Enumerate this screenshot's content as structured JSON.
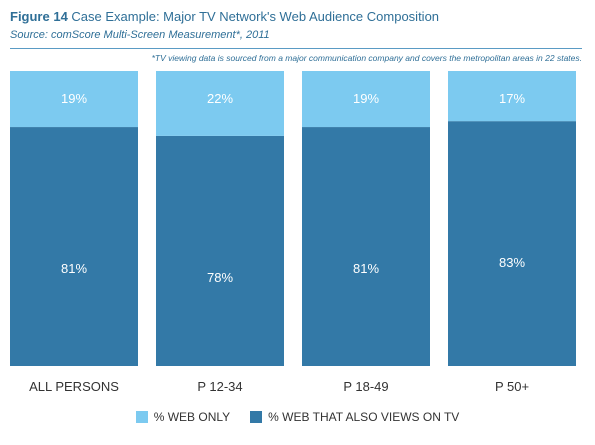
{
  "header": {
    "figure_number": "Figure 14",
    "title": "Case Example: Major TV Network's Web Audience Composition",
    "source": "Source: comScore Multi-Screen Measurement*, 2011",
    "note": "*TV viewing data is sourced from a major communication company and covers the metropolitan areas in 22 states."
  },
  "colors": {
    "web_only": "#7ccaf0",
    "web_and_tv": "#3379a7",
    "label_text": "#ffffff",
    "axis_text": "#333333"
  },
  "chart_data": {
    "type": "bar",
    "stacked": true,
    "percent_stacked": true,
    "categories": [
      "ALL PERSONS",
      "P 12-34",
      "P 18-49",
      "P 50+"
    ],
    "series": [
      {
        "name": "% WEB THAT ALSO VIEWS ON TV",
        "values": [
          81,
          78,
          81,
          83
        ],
        "labels": [
          "81%",
          "78%",
          "81%",
          "83%"
        ]
      },
      {
        "name": "% WEB ONLY",
        "values": [
          19,
          22,
          19,
          17
        ],
        "labels": [
          "19%",
          "22%",
          "19%",
          "17%"
        ]
      }
    ],
    "ylim": [
      0,
      100
    ],
    "grid": false,
    "legend_position": "bottom"
  },
  "legend": [
    {
      "label": "% WEB ONLY",
      "series": 1
    },
    {
      "label": "% WEB THAT ALSO VIEWS ON TV",
      "series": 0
    }
  ]
}
